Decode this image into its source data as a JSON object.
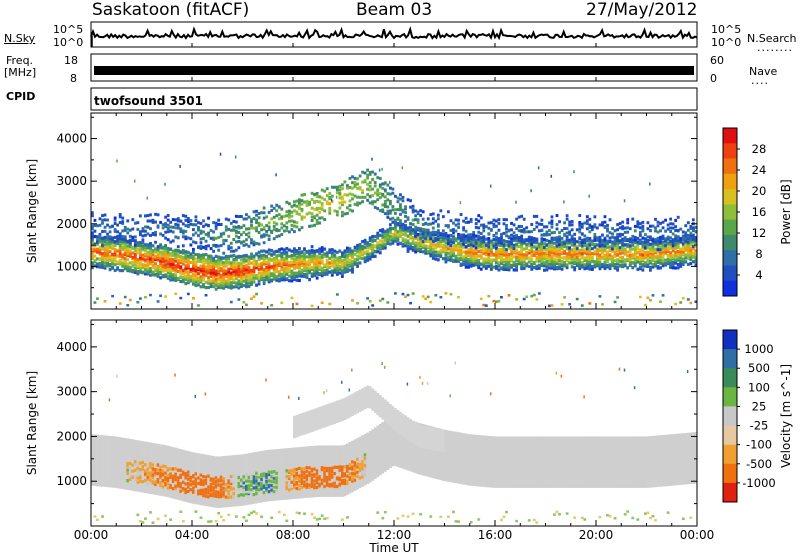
{
  "header": {
    "station": "Saskatoon (fitACF)",
    "beam": "Beam 03",
    "date": "27/May/2012"
  },
  "left_labels": {
    "nsky": "N.Sky",
    "freq_line1": "Freq.",
    "freq_line2": "[MHz]",
    "cpid": "CPID"
  },
  "right_labels": {
    "nsearch": "N.Search",
    "nave": "Nave"
  },
  "cpid_value": "twofsound 3501",
  "noise_axis": {
    "left_ticks": [
      "10^5",
      "10^0"
    ],
    "right_ticks": [
      "10^5",
      "10^0"
    ]
  },
  "freq_axis": {
    "left_ticks": [
      "18",
      "8"
    ],
    "right_ticks": [
      "60",
      "0"
    ]
  },
  "x_axis": {
    "label": "Time UT",
    "ticks": [
      "00:00",
      "04:00",
      "08:00",
      "12:00",
      "16:00",
      "20:00",
      "00:00"
    ]
  },
  "colors": {
    "power_scale": [
      "#1030e0",
      "#2050c0",
      "#2f6fa8",
      "#3f8a6a",
      "#5aa64a",
      "#8fbf3a",
      "#d8c020",
      "#f0a010",
      "#f07010",
      "#ee4010",
      "#e01010"
    ],
    "velocity_scale": [
      "#1030c0",
      "#2f6fa8",
      "#3a8a5a",
      "#6ab640",
      "#c8c8c8",
      "#e8c8a0",
      "#f0a030",
      "#f07010",
      "#e02010"
    ],
    "velocity_field": "#c8c8c8"
  },
  "chart_data": [
    {
      "type": "heatmap",
      "title": "Power",
      "ylabel": "Slant Range [km]",
      "xlabel": "",
      "colorbar_label": "Power [dB]",
      "colorbar_ticks": [
        "28",
        "24",
        "20",
        "16",
        "12",
        "8",
        "4"
      ],
      "y_ticks": [
        "1000",
        "2000",
        "3000",
        "4000"
      ],
      "ylim": [
        0,
        4600
      ],
      "xlim": [
        "00:00",
        "24:00"
      ],
      "x_hours": [
        0,
        1,
        2,
        3,
        4,
        5,
        6,
        7,
        8,
        9,
        10,
        11,
        12,
        13,
        14,
        15,
        16,
        17,
        18,
        19,
        20,
        21,
        22,
        23,
        24
      ],
      "main_band_center_km": [
        1350,
        1300,
        1200,
        1100,
        950,
        850,
        900,
        1000,
        1050,
        1100,
        1100,
        1400,
        1800,
        1600,
        1450,
        1350,
        1300,
        1300,
        1300,
        1300,
        1300,
        1300,
        1300,
        1350,
        1400
      ],
      "main_band_peak_power_db": [
        26,
        27,
        28,
        29,
        30,
        30,
        29,
        27,
        25,
        23,
        20,
        18,
        18,
        20,
        22,
        24,
        25,
        25,
        25,
        25,
        24,
        24,
        24,
        24,
        24
      ],
      "upper_echo_center_km": [
        1900,
        1900,
        1900,
        1900,
        1800,
        1700,
        1800,
        2000,
        2200,
        2400,
        2600,
        2900,
        2400,
        2000,
        1900,
        1850,
        1800,
        1800,
        1800,
        1800,
        1800,
        1800,
        1800,
        1800,
        1800
      ],
      "upper_echo_power_db": [
        8,
        8,
        8,
        8,
        9,
        10,
        12,
        14,
        16,
        18,
        18,
        16,
        12,
        10,
        8,
        8,
        8,
        8,
        8,
        8,
        8,
        8,
        8,
        8,
        8
      ]
    },
    {
      "type": "heatmap",
      "title": "Velocity",
      "ylabel": "Slant Range [km]",
      "xlabel": "Time UT",
      "colorbar_label": "Velocity [m s^-1]",
      "colorbar_ticks": [
        "1000",
        "500",
        "100",
        "25",
        "-25",
        "-100",
        "-500",
        "-1000"
      ],
      "y_ticks": [
        "1000",
        "2000",
        "3000",
        "4000"
      ],
      "ylim": [
        0,
        4600
      ],
      "xlim": [
        "00:00",
        "24:00"
      ],
      "x_hours": [
        0,
        1,
        2,
        3,
        4,
        5,
        6,
        7,
        8,
        9,
        10,
        11,
        12,
        13,
        14,
        15,
        16,
        17,
        18,
        19,
        20,
        21,
        22,
        23,
        24
      ],
      "main_band_center_km": [
        1350,
        1300,
        1200,
        1100,
        950,
        850,
        900,
        1000,
        1050,
        1100,
        1100,
        1400,
        1800,
        1600,
        1450,
        1350,
        1300,
        1300,
        1300,
        1300,
        1300,
        1300,
        1300,
        1350,
        1400
      ],
      "main_band_velocity_ms": [
        0,
        0,
        -60,
        -150,
        -300,
        -250,
        80,
        120,
        -100,
        -250,
        -200,
        0,
        0,
        0,
        0,
        0,
        0,
        0,
        0,
        0,
        0,
        0,
        0,
        0,
        0
      ]
    }
  ]
}
